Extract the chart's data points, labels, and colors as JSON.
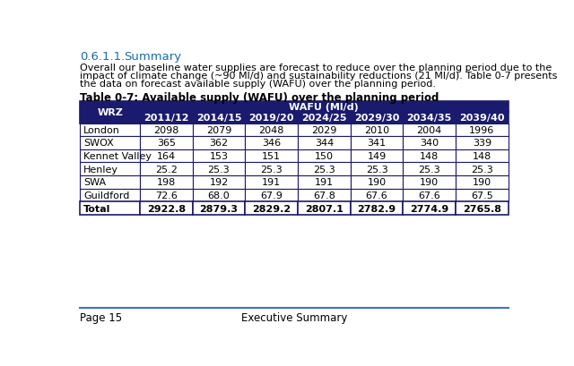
{
  "section_num": "0.6.1.1.",
  "section_title": "Summary",
  "body_text_lines": [
    "Overall our baseline water supplies are forecast to reduce over the planning period due to the",
    "impact of climate change (~90 Ml/d) and sustainability reductions (21 Ml/d). Table 0-7 presents",
    "the data on forecast available supply (WAFU) over the planning period."
  ],
  "table_caption": "Table 0-7: Available supply (WAFU) over the planning period",
  "header_top": "WAFU (Ml/d)",
  "col_headers": [
    "2011/12",
    "2014/15",
    "2019/20",
    "2024/25",
    "2029/30",
    "2034/35",
    "2039/40"
  ],
  "row_header": "WRZ",
  "rows": [
    {
      "name": "London",
      "values": [
        "2098",
        "2079",
        "2048",
        "2029",
        "2010",
        "2004",
        "1996"
      ]
    },
    {
      "name": "SWOX",
      "values": [
        "365",
        "362",
        "346",
        "344",
        "341",
        "340",
        "339"
      ]
    },
    {
      "name": "Kennet Valley",
      "values": [
        "164",
        "153",
        "151",
        "150",
        "149",
        "148",
        "148"
      ]
    },
    {
      "name": "Henley",
      "values": [
        "25.2",
        "25.3",
        "25.3",
        "25.3",
        "25.3",
        "25.3",
        "25.3"
      ]
    },
    {
      "name": "SWA",
      "values": [
        "198",
        "192",
        "191",
        "191",
        "190",
        "190",
        "190"
      ]
    },
    {
      "name": "Guildford",
      "values": [
        "72.6",
        "68.0",
        "67.9",
        "67.8",
        "67.6",
        "67.6",
        "67.5"
      ]
    }
  ],
  "total_row": {
    "name": "Total",
    "values": [
      "2922.8",
      "2879.3",
      "2829.2",
      "2807.1",
      "2782.9",
      "2774.9",
      "2765.8"
    ]
  },
  "header_bg_color": "#1a1a6e",
  "header_text_color": "#ffffff",
  "body_bg_color": "#ffffff",
  "body_text_color": "#000000",
  "border_color": "#1a1a6e",
  "section_num_color": "#1a6ea8",
  "section_title_color": "#1a6ea8",
  "footer_line_color": "#4472c4",
  "footer_page": "Page 15",
  "footer_center": "Executive Summary",
  "section_fontsize": 9.5,
  "body_fontsize": 8.0,
  "table_fontsize": 8.0,
  "caption_fontsize": 8.5
}
